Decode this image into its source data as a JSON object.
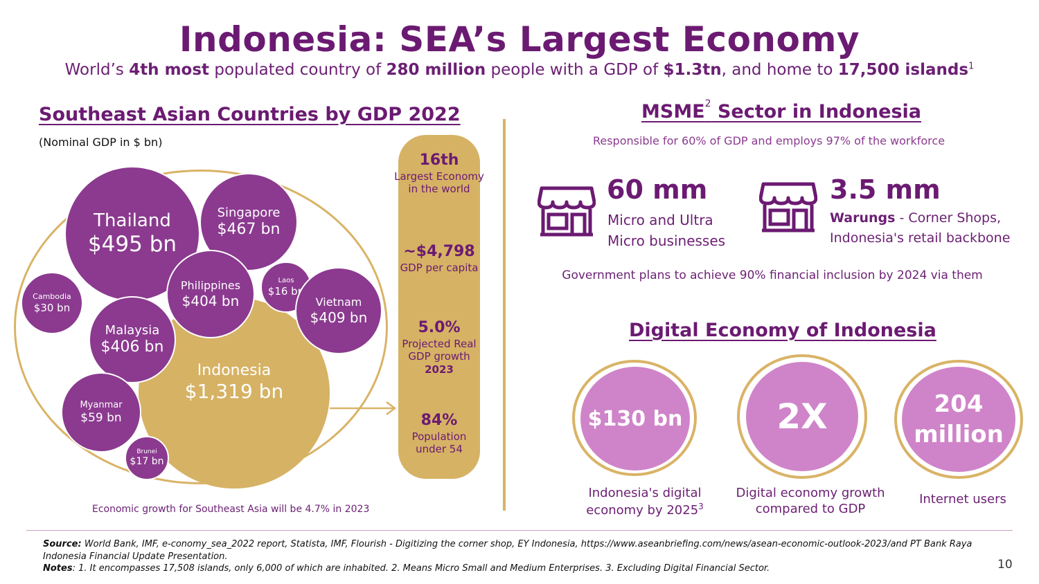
{
  "header": {
    "title": "Indonesia: SEA’s Largest Economy",
    "subtitle_parts": [
      "World’s ",
      "4th most",
      " populated country of ",
      "280 million",
      " people with a GDP of ",
      "$1.3tn",
      ", and home to ",
      "17,500 islands",
      "1"
    ]
  },
  "left": {
    "heading": "Southeast Asian Countries by GDP 2022",
    "unit_note": "(Nominal GDP in $ bn)",
    "bottom_note": "Economic growth for Southeast Asia will be 4.7% in 2023",
    "countries": [
      {
        "name": "Thailand",
        "value": "$495 bn"
      },
      {
        "name": "Singapore",
        "value": "$467 bn"
      },
      {
        "name": "Philippines",
        "value": "$404 bn"
      },
      {
        "name": "Laos",
        "value": "$16 bn"
      },
      {
        "name": "Vietnam",
        "value": "$409 bn"
      },
      {
        "name": "Cambodia",
        "value": "$30 bn"
      },
      {
        "name": "Malaysia",
        "value": "$406 bn"
      },
      {
        "name": "Indonesia",
        "value": "$1,319 bn"
      },
      {
        "name": "Myanmar",
        "value": "$59 bn"
      },
      {
        "name": "Brunei",
        "value": "$17 bn"
      }
    ],
    "stats": [
      {
        "big": "16th",
        "small": "Largest Economy in the world",
        "extra": ""
      },
      {
        "big": "~$4,798",
        "small": "GDP per capita",
        "extra": ""
      },
      {
        "big": "5.0%",
        "small": "Projected Real GDP growth",
        "extra": "2023"
      },
      {
        "big": "84%",
        "small": "Population under 54",
        "extra": ""
      }
    ]
  },
  "msme": {
    "heading_pre": "MSME",
    "heading_sup": "2",
    "heading_post": " Sector in Indonesia",
    "subtitle": "Responsible for 60% of GDP and employs 97% of the workforce",
    "items": [
      {
        "icon": "shop-icon",
        "number": "60 mm",
        "line1": "Micro and Ultra",
        "line2": "Micro businesses"
      },
      {
        "icon": "shop-icon",
        "number": "3.5 mm",
        "bold": "Warungs",
        "line1": " - Corner Shops,",
        "line2": "Indonesia's retail backbone"
      }
    ],
    "gov_note": "Government plans to achieve 90% financial inclusion by 2024 via them"
  },
  "digital": {
    "heading": "Digital Economy of Indonesia",
    "circles": [
      {
        "value": "$130 bn",
        "caption1": "Indonesia's digital",
        "caption2": "economy by 2025",
        "sup": "3"
      },
      {
        "value": "2X",
        "caption1": "Digital economy growth",
        "caption2": "compared to GDP",
        "sup": ""
      },
      {
        "value_line1": "204",
        "value_line2": "million",
        "caption1": "Internet users",
        "caption2": "",
        "sup": ""
      }
    ]
  },
  "footer": {
    "source_label": "Source:",
    "source_text": " World Bank, IMF, e-conomy_sea_2022 report, Statista, IMF, Flourish - Digitizing the corner shop, EY Indonesia, https://www.aseanbriefing.com/news/asean-economic-outlook-2023/and PT Bank Raya Indonesia Financial Update Presentation.",
    "notes_label": "Notes",
    "notes_text": ": 1. It encompasses 17,508 islands, only 6,000 of which are inhabited. 2. Means Micro Small and Medium Enterprises. 3. Excluding Digital Financial Sector.",
    "page_number": "10"
  },
  "colors": {
    "purple": "#8b3a8f",
    "dark_purple": "#6b1a72",
    "gold": "#d6b265",
    "pink": "#cf84c9"
  }
}
